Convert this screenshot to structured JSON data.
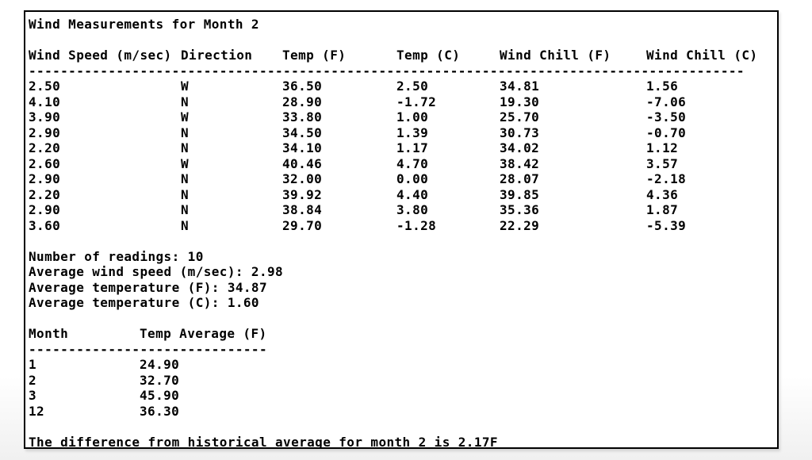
{
  "colors": {
    "text": "#000000",
    "border": "#000000",
    "background": "#ffffff"
  },
  "window": {
    "title_line": "Wind Measurements for Month 2"
  },
  "measurements_table": {
    "headers": {
      "wind_speed": "Wind Speed (m/sec)",
      "direction": "Direction",
      "temp_f": "Temp (F)",
      "temp_c": "Temp (C)",
      "wind_chill_f": "Wind Chill (F)",
      "wind_chill_c": "Wind Chill (C)"
    },
    "separator": "------------------------------------------------------------------------------------------",
    "rows": [
      {
        "wind_speed": "2.50",
        "direction": "W",
        "temp_f": "36.50",
        "temp_c": "2.50",
        "wind_chill_f": "34.81",
        "wind_chill_c": "1.56"
      },
      {
        "wind_speed": "4.10",
        "direction": "N",
        "temp_f": "28.90",
        "temp_c": "-1.72",
        "wind_chill_f": "19.30",
        "wind_chill_c": "-7.06"
      },
      {
        "wind_speed": "3.90",
        "direction": "W",
        "temp_f": "33.80",
        "temp_c": "1.00",
        "wind_chill_f": "25.70",
        "wind_chill_c": "-3.50"
      },
      {
        "wind_speed": "2.90",
        "direction": "N",
        "temp_f": "34.50",
        "temp_c": "1.39",
        "wind_chill_f": "30.73",
        "wind_chill_c": "-0.70"
      },
      {
        "wind_speed": "2.20",
        "direction": "N",
        "temp_f": "34.10",
        "temp_c": "1.17",
        "wind_chill_f": "34.02",
        "wind_chill_c": "1.12"
      },
      {
        "wind_speed": "2.60",
        "direction": "W",
        "temp_f": "40.46",
        "temp_c": "4.70",
        "wind_chill_f": "38.42",
        "wind_chill_c": "3.57"
      },
      {
        "wind_speed": "2.90",
        "direction": "N",
        "temp_f": "32.00",
        "temp_c": "0.00",
        "wind_chill_f": "28.07",
        "wind_chill_c": "-2.18"
      },
      {
        "wind_speed": "2.20",
        "direction": "N",
        "temp_f": "39.92",
        "temp_c": "4.40",
        "wind_chill_f": "39.85",
        "wind_chill_c": "4.36"
      },
      {
        "wind_speed": "2.90",
        "direction": "N",
        "temp_f": "38.84",
        "temp_c": "3.80",
        "wind_chill_f": "35.36",
        "wind_chill_c": "1.87"
      },
      {
        "wind_speed": "3.60",
        "direction": "N",
        "temp_f": "29.70",
        "temp_c": "-1.28",
        "wind_chill_f": "22.29",
        "wind_chill_c": "-5.39"
      }
    ]
  },
  "summary": {
    "readings": "Number of readings: 10",
    "avg_wind_speed": "Average wind speed (m/sec): 2.98",
    "avg_temp_f": "Average temperature (F): 34.87",
    "avg_temp_c": "Average temperature (C): 1.60"
  },
  "monthly_table": {
    "headers": {
      "month": "Month",
      "temp_avg": "Temp Average (F)"
    },
    "separator": "------------------------------",
    "rows": [
      {
        "month": "1",
        "temp_avg": "24.90"
      },
      {
        "month": "2",
        "temp_avg": "32.70"
      },
      {
        "month": "3",
        "temp_avg": "45.90"
      },
      {
        "month": "12",
        "temp_avg": "36.30"
      }
    ]
  },
  "footer": {
    "text": "The difference from historical average for month 2 is 2.17F"
  }
}
